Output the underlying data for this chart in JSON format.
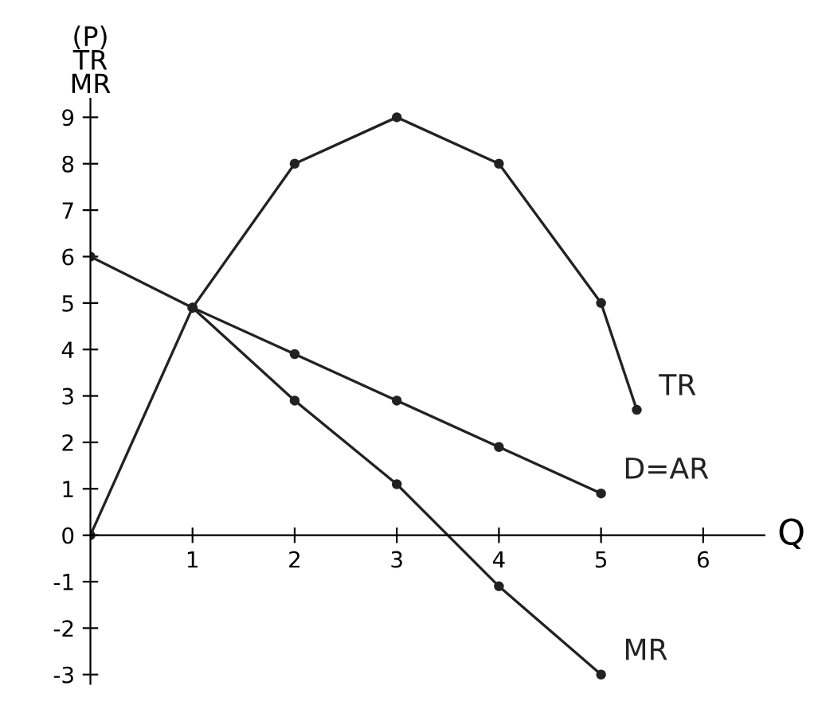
{
  "chart_data": {
    "type": "line",
    "xlabel": "Q",
    "ylabel": "(P)\nTR\nMR",
    "xlim": [
      0,
      6.6
    ],
    "ylim": [
      -3.2,
      9.4
    ],
    "xticks": [
      1,
      2,
      3,
      4,
      5,
      6
    ],
    "yticks": [
      -3,
      -2,
      -1,
      0,
      1,
      2,
      3,
      4,
      5,
      6,
      7,
      8,
      9
    ],
    "series": [
      {
        "name": "TR",
        "color": "#222222",
        "x": [
          0,
          1,
          2,
          3,
          4,
          5,
          5.35
        ],
        "values": [
          0,
          4.9,
          8,
          9,
          8,
          5,
          2.7
        ]
      },
      {
        "name": "D=AR",
        "color": "#222222",
        "x": [
          0,
          1,
          2,
          3,
          4,
          5
        ],
        "values": [
          6,
          4.9,
          3.9,
          2.9,
          1.9,
          0.9
        ]
      },
      {
        "name": "MR",
        "color": "#222222",
        "x": [
          1,
          2,
          3,
          4,
          5
        ],
        "values": [
          4.9,
          2.9,
          1.1,
          -1.1,
          -3
        ]
      }
    ],
    "marker": "circle",
    "line_style": "solid",
    "grid": false
  }
}
